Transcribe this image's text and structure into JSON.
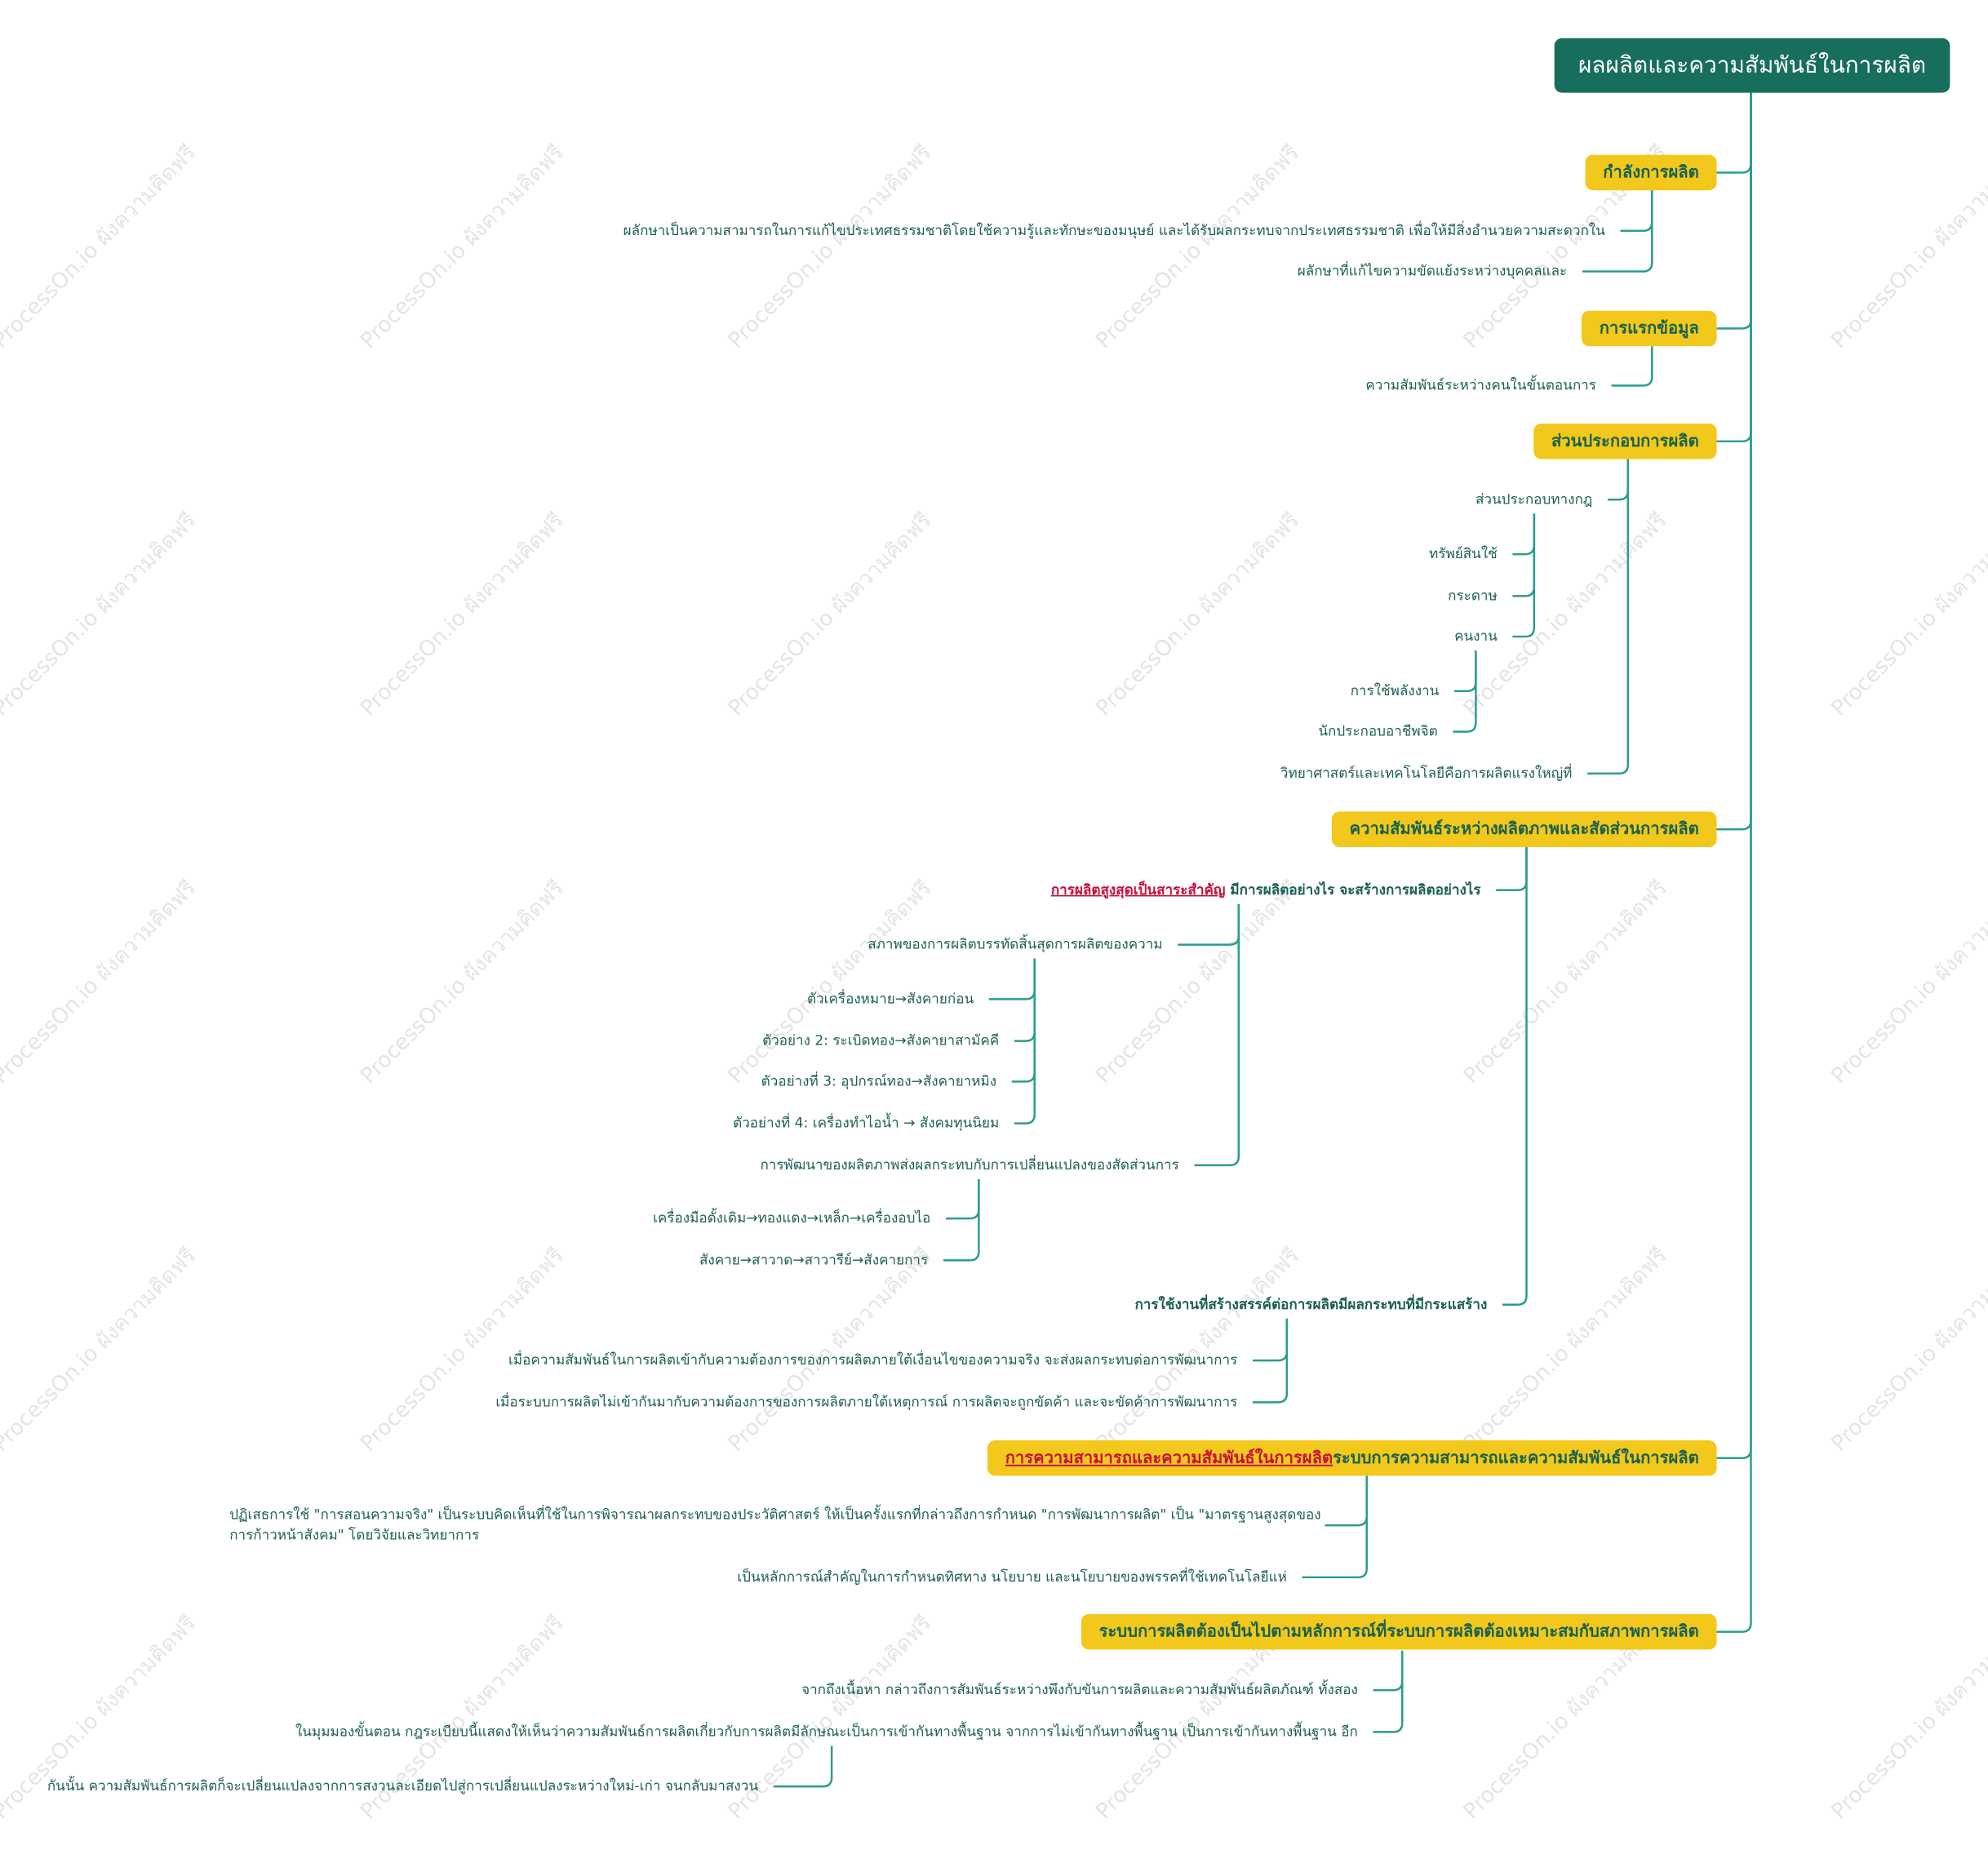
{
  "root": {
    "title": "ผลผลิตและความสัมพันธ์ในการผลิต"
  },
  "watermark": "ProcessOn.io ผังความคิดฟรี",
  "branches": [
    {
      "label": "กำลังการผลิต",
      "children": [
        {
          "label": "ผลักษาเป็นความสามารถในการแก้ไขประเทศธรรมชาติโดยใช้ความรู้และทักษะของมนุษย์ และได้รับผลกระทบจากประเทศธรรมชาติ เพื่อให้มีสิ่งอำนวยความสะดวกใน"
        },
        {
          "label": "ผลักษาที่แก้ไขความขัดแย้งระหว่างบุคคลและ"
        }
      ]
    },
    {
      "label": "การแรกข้อมูล",
      "children": [
        {
          "label": "ความสัมพันธ์ระหว่างคนในขั้นตอนการ"
        }
      ]
    },
    {
      "label": "ส่วนประกอบการผลิต",
      "children": [
        {
          "label": "ส่วนประกอบทางกฎ",
          "children": [
            {
              "label": "ทรัพย์สินใช้"
            },
            {
              "label": "กระดาษ"
            },
            {
              "label": "คนงาน",
              "children": [
                {
                  "label": "การใช้พลังงาน"
                },
                {
                  "label": "นักประกอบอาชีพจิต"
                }
              ]
            }
          ]
        },
        {
          "label": "วิทยาศาสตร์และเทคโนโลยีคือการผลิตแรงใหญ่ที่"
        }
      ]
    },
    {
      "label": "ความสัมพันธ์ระหว่างผลิตภาพและสัดส่วนการผลิต",
      "children": [
        {
          "highlight": "การผลิตสูงสุดเป็นสาระสำคัญ",
          "label": " มีการผลิตอย่างไร จะสร้างการผลิตอย่างไร",
          "children": [
            {
              "label": "สภาพของการผลิตบรรทัดสิ้นสุดการผลิตของความ",
              "children": [
                {
                  "label": "ตัวเครื่องหมาย→สังคายก่อน"
                },
                {
                  "label": "ตัวอย่าง 2: ระเบิดทอง→สังคายาสามัคคี"
                },
                {
                  "label": "ตัวอย่างที่ 3: อุปกรณ์ทอง→สังคายาหมิง"
                },
                {
                  "label": "ตัวอย่างที่ 4: เครื่องทำไอน้ำ → สังคมทุนนิยม"
                }
              ]
            },
            {
              "label": "การพัฒนาของผลิตภาพส่งผลกระทบกับการเปลี่ยนแปลงของสัดส่วนการ",
              "children": [
                {
                  "label": "เครื่องมือดั้งเดิม→ทองแดง→เหล็ก→เครื่องอบไอ"
                },
                {
                  "label": "สังคาย→สาวาด→สาวารีย์→สังคายการ"
                }
              ]
            }
          ]
        },
        {
          "label": "การใช้งานที่สร้างสรรค์ต่อการผลิตมีผลกระทบที่มีกระแสร้าง",
          "color": "#c8103c",
          "children": [
            {
              "label": "เมื่อความสัมพันธ์ในการผลิตเข้ากับความต้องการของการผลิตภายใต้เงื่อนไขของความจริง จะส่งผลกระทบต่อการพัฒนาการ"
            },
            {
              "label": "เมื่อระบบการผลิตไม่เข้ากันมากับความต้องการของการผลิตภายใต้เหตุการณ์ การผลิตจะถูกขัดค้า และจะขัดค้าการพัฒนาการ"
            }
          ]
        }
      ]
    },
    {
      "highlight": "การความสามารถและความสัมพันธ์ในการผลิต",
      "label": "ระบบการความสามารถและความสัมพันธ์ในการผลิต",
      "children": [
        {
          "lines": [
            "ปฏิเสธการใช้ \"การสอนความจริง\" เป็นระบบคิดเห็นที่ใช้ในการพิจารณาผลกระทบของประวัติศาสตร์ ให้เป็นครั้งแรกที่กล่าวถึงการกำหนด \"การพัฒนาการผลิต\" เป็น \"มาตรฐานสูงสุดของ",
            "การก้าวหน้าสังคม\" โดยวิจัยและวิทยาการ"
          ]
        },
        {
          "label": "เป็นหลักการณ์สำคัญในการกำหนดทิศทาง นโยบาย และนโยบายของพรรคที่ใช้เทคโนโลยีแห่"
        }
      ]
    },
    {
      "label": "ระบบการผลิตต้องเป็นไปตามหลักการณ์ที่ระบบการผลิตต้องเหมาะสมกับสภาพการผลิต",
      "children": [
        {
          "label": "จากถึงเนื้อหา กล่าวถึงการสัมพันธ์ระหว่างพึงกับขันการผลิตและความสัมพันธ์ผลิตภัณฑ์ ทั้งสอง"
        },
        {
          "label": "ในมุมมองขั้นตอน กฎระเบียบนี้แสดงให้เห็นว่าความสัมพันธ์การผลิตเกี่ยวกับการผลิตมีลักษณะเป็นการเข้ากันทางพื้นฐาน จากการไม่เข้ากันทางพื้นฐาน เป็นการเข้ากันทางพื้นฐาน อีก",
          "children": [
            {
              "label": "กันนั้น ความสัมพันธ์การผลิตก็จะเปลี่ยนแปลงจากการสงวนละเอียดไปสู่การเปลี่ยนแปลงระหว่างใหม่-เก่า จนกลับมาสงวน"
            }
          ]
        }
      ]
    }
  ]
}
